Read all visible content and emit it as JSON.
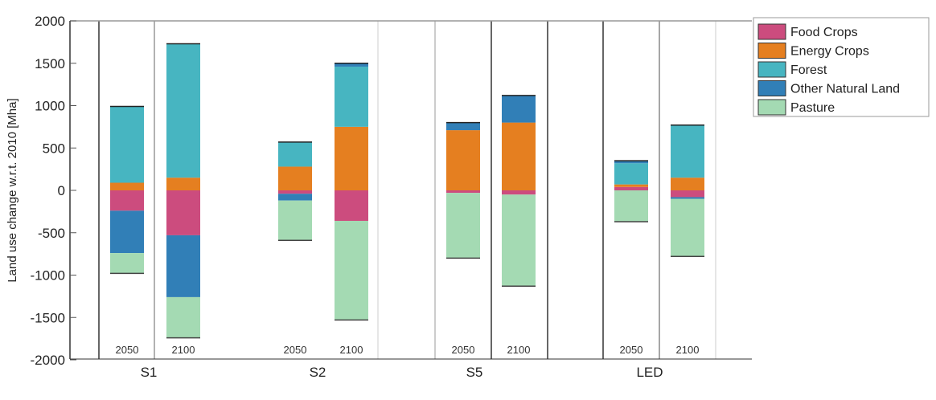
{
  "chart_data": {
    "type": "bar",
    "stacked": true,
    "ylabel": "Land use change w.r.t. 2010 [Mha]",
    "ylim": [
      -2000,
      2000
    ],
    "yticks": [
      -2000,
      -1500,
      -1000,
      -500,
      0,
      500,
      1000,
      1500,
      2000
    ],
    "groups": [
      "S1",
      "S2",
      "S5",
      "LED"
    ],
    "years": [
      "2050",
      "2100"
    ],
    "legend_position": "top-right",
    "series": [
      {
        "name": "Food Crops",
        "color": "#cc4c7e",
        "values": [
          -240,
          -530,
          -40,
          -360,
          -30,
          -50,
          40,
          -80
        ]
      },
      {
        "name": "Energy Crops",
        "color": "#e57f20",
        "values": [
          90,
          150,
          280,
          750,
          710,
          800,
          30,
          150
        ]
      },
      {
        "name": "Forest",
        "color": "#47b5c1",
        "values": [
          900,
          1580,
          290,
          710,
          0,
          0,
          250,
          620
        ]
      },
      {
        "name": "Other Natural Land",
        "color": "#317fb7",
        "values": [
          -500,
          -730,
          -80,
          40,
          90,
          320,
          30,
          -20
        ]
      },
      {
        "name": "Pasture",
        "color": "#a4dab3",
        "values": [
          -240,
          -480,
          -470,
          -1170,
          -770,
          -1080,
          -370,
          -680
        ]
      }
    ]
  }
}
